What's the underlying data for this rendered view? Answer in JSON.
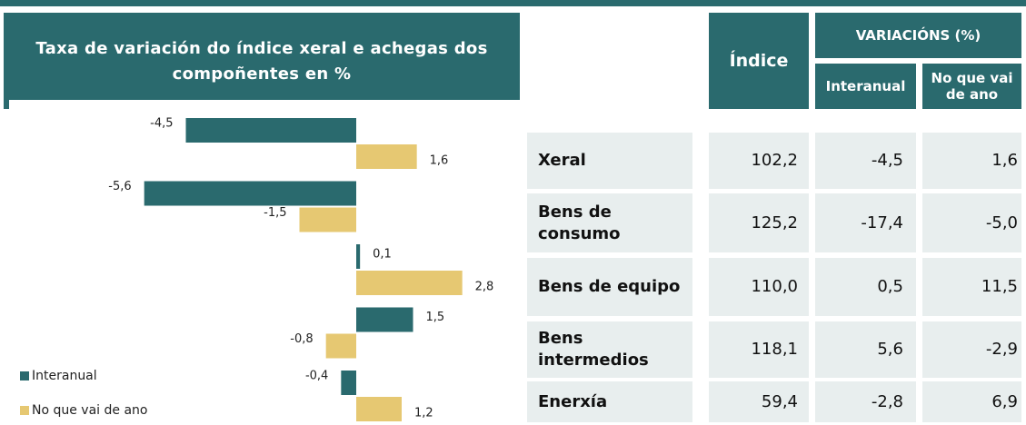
{
  "chart_data": {
    "type": "bar",
    "orientation": "horizontal",
    "title": "Taxa de variación do índice xeral e achegas dos compoñentes en %",
    "categories": [
      null,
      null,
      null,
      null,
      null
    ],
    "series": [
      {
        "name": "Interanual",
        "color": "#2a6a6e",
        "values": [
          -4.5,
          -5.6,
          0.1,
          1.5,
          -0.4
        ],
        "value_labels": [
          "-4,5",
          "-5,6",
          "0,1",
          "1,5",
          "-0,4"
        ]
      },
      {
        "name": "No que vai de ano",
        "color": "#e6c872",
        "values": [
          1.6,
          -1.5,
          2.8,
          -0.8,
          1.2
        ],
        "value_labels": [
          "1,6",
          "-1,5",
          "2,8",
          "-0,8",
          "1,2"
        ]
      }
    ],
    "xlim": [
      -6,
      3
    ],
    "legend": "lower left"
  },
  "table": {
    "header": {
      "index": "Índice",
      "variations": "VARIACIÓNS (%)",
      "sub": [
        "Interanual",
        "No que vai de ano"
      ]
    },
    "rows": [
      [
        "Xeral",
        "102,2",
        "-4,5",
        "1,6"
      ],
      [
        "Bens de consumo",
        "125,2",
        "-17,4",
        "-5,0"
      ],
      [
        "Bens de equipo",
        "110,0",
        "0,5",
        "11,5"
      ],
      [
        "Bens intermedios",
        "118,1",
        "5,6",
        "-2,9"
      ],
      [
        "Enerxía",
        "59,4",
        "-2,8",
        "6,9"
      ]
    ]
  }
}
